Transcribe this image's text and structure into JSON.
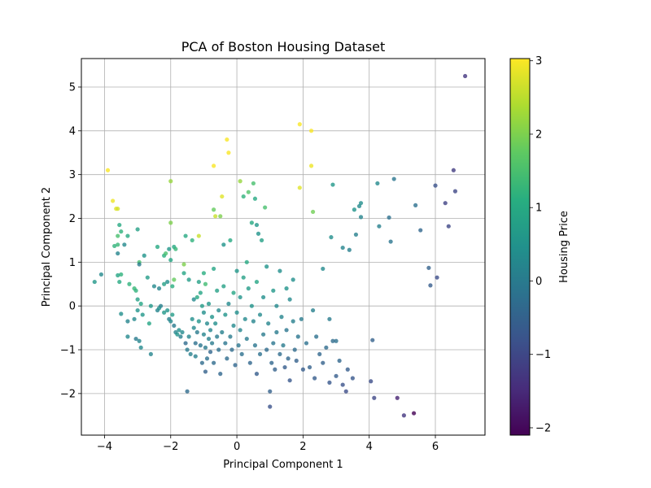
{
  "chart_data": {
    "type": "scatter",
    "title": "PCA of Boston Housing Dataset",
    "xlabel": "Principal Component 1",
    "ylabel": "Principal Component 2",
    "xlim": [
      -4.7,
      7.5
    ],
    "ylim": [
      -2.95,
      5.65
    ],
    "xticks": [
      -4,
      -2,
      0,
      2,
      4,
      6
    ],
    "yticks": [
      -2,
      -1,
      0,
      1,
      2,
      3,
      4,
      5
    ],
    "grid": true,
    "colorbar": {
      "label": "Housing Price",
      "colormap": "viridis",
      "range": [
        -2.1,
        3.03
      ],
      "ticks": [
        -2,
        -1,
        0,
        1,
        2,
        3
      ]
    },
    "points": [
      {
        "x": -4.3,
        "y": 0.55,
        "c": 0.6
      },
      {
        "x": -4.1,
        "y": 0.72,
        "c": 0.3
      },
      {
        "x": -3.9,
        "y": 3.1,
        "c": 3.0
      },
      {
        "x": -3.75,
        "y": 2.4,
        "c": 2.9
      },
      {
        "x": -3.65,
        "y": 2.22,
        "c": 2.8
      },
      {
        "x": -3.6,
        "y": 2.22,
        "c": 2.7
      },
      {
        "x": -3.7,
        "y": 1.37,
        "c": 1.2
      },
      {
        "x": -3.6,
        "y": 1.4,
        "c": 1.3
      },
      {
        "x": -3.55,
        "y": 1.85,
        "c": 1.0
      },
      {
        "x": -3.6,
        "y": 1.6,
        "c": 1.5
      },
      {
        "x": -3.6,
        "y": 1.2,
        "c": 0.2
      },
      {
        "x": -3.5,
        "y": 1.7,
        "c": 1.2
      },
      {
        "x": -3.4,
        "y": 1.4,
        "c": 0.3
      },
      {
        "x": -3.3,
        "y": 1.6,
        "c": 1.0
      },
      {
        "x": -3.5,
        "y": 0.72,
        "c": 1.2
      },
      {
        "x": -3.6,
        "y": 0.7,
        "c": 0.9
      },
      {
        "x": -3.55,
        "y": 0.55,
        "c": 1.0
      },
      {
        "x": -3.5,
        "y": -0.18,
        "c": 0.4
      },
      {
        "x": -3.3,
        "y": -0.35,
        "c": 0.2
      },
      {
        "x": -3.25,
        "y": 0.5,
        "c": 1.2
      },
      {
        "x": -3.3,
        "y": -0.7,
        "c": 0.3
      },
      {
        "x": -3.1,
        "y": 0.4,
        "c": 1.3
      },
      {
        "x": -3.05,
        "y": 0.35,
        "c": 1.2
      },
      {
        "x": -3.0,
        "y": 1.75,
        "c": 0.8
      },
      {
        "x": -2.95,
        "y": 1.0,
        "c": 1.5
      },
      {
        "x": -2.95,
        "y": 0.95,
        "c": 0.0
      },
      {
        "x": -3.0,
        "y": 0.15,
        "c": 0.8
      },
      {
        "x": -2.9,
        "y": 0.05,
        "c": 0.9
      },
      {
        "x": -3.0,
        "y": -0.1,
        "c": 0.5
      },
      {
        "x": -3.1,
        "y": -0.3,
        "c": 0.3
      },
      {
        "x": -3.05,
        "y": -0.75,
        "c": 0.0
      },
      {
        "x": -2.95,
        "y": -0.8,
        "c": 0.2
      },
      {
        "x": -2.9,
        "y": -0.95,
        "c": 0.3
      },
      {
        "x": -2.85,
        "y": -0.2,
        "c": 0.6
      },
      {
        "x": -2.8,
        "y": 1.15,
        "c": 0.5
      },
      {
        "x": -2.7,
        "y": 0.65,
        "c": 0.7
      },
      {
        "x": -2.65,
        "y": -0.4,
        "c": 0.9
      },
      {
        "x": -2.6,
        "y": -1.1,
        "c": 0.2
      },
      {
        "x": -2.6,
        "y": 0.0,
        "c": 0.6
      },
      {
        "x": -2.5,
        "y": 0.45,
        "c": 0.3
      },
      {
        "x": -2.4,
        "y": 1.35,
        "c": 1.0
      },
      {
        "x": -2.35,
        "y": 0.4,
        "c": 0.2
      },
      {
        "x": -2.3,
        "y": 0.0,
        "c": 0.1
      },
      {
        "x": -2.2,
        "y": 0.5,
        "c": 0.8
      },
      {
        "x": -2.2,
        "y": 1.15,
        "c": 1.1
      },
      {
        "x": -2.15,
        "y": 1.2,
        "c": 1.5
      },
      {
        "x": -2.1,
        "y": 0.55,
        "c": 0.4
      },
      {
        "x": -2.05,
        "y": 1.3,
        "c": 0.6
      },
      {
        "x": -2.0,
        "y": 1.9,
        "c": 2.0
      },
      {
        "x": -2.0,
        "y": 2.85,
        "c": 2.2
      },
      {
        "x": -2.0,
        "y": 1.05,
        "c": 0.9
      },
      {
        "x": -1.95,
        "y": 0.45,
        "c": 1.1
      },
      {
        "x": -1.9,
        "y": 0.6,
        "c": 1.8
      },
      {
        "x": -1.9,
        "y": 1.35,
        "c": 1.0
      },
      {
        "x": -1.85,
        "y": 1.3,
        "c": 1.3
      },
      {
        "x": -2.4,
        "y": -0.1,
        "c": 0.2
      },
      {
        "x": -2.35,
        "y": -0.05,
        "c": 0.4
      },
      {
        "x": -2.2,
        "y": -0.15,
        "c": 0.6
      },
      {
        "x": -2.1,
        "y": -0.1,
        "c": 0.5
      },
      {
        "x": -2.05,
        "y": -0.3,
        "c": 0.1
      },
      {
        "x": -2.0,
        "y": -0.35,
        "c": 0.3
      },
      {
        "x": -1.95,
        "y": -0.2,
        "c": 0.7
      },
      {
        "x": -1.9,
        "y": -0.45,
        "c": 0.0
      },
      {
        "x": -1.85,
        "y": -0.6,
        "c": 0.2
      },
      {
        "x": -1.8,
        "y": -0.65,
        "c": 0.5
      },
      {
        "x": -1.75,
        "y": -0.55,
        "c": 0.4
      },
      {
        "x": -1.7,
        "y": -0.7,
        "c": 0.1
      },
      {
        "x": -1.65,
        "y": -0.6,
        "c": 0.3
      },
      {
        "x": -1.6,
        "y": 0.95,
        "c": 2.0
      },
      {
        "x": -1.55,
        "y": 1.6,
        "c": 1.0
      },
      {
        "x": -1.6,
        "y": 0.75,
        "c": 0.9
      },
      {
        "x": -1.55,
        "y": -0.85,
        "c": -0.3
      },
      {
        "x": -1.5,
        "y": -1.0,
        "c": 0.0
      },
      {
        "x": -1.5,
        "y": -1.95,
        "c": -0.3
      },
      {
        "x": -1.45,
        "y": -0.7,
        "c": 0.2
      },
      {
        "x": -1.45,
        "y": 0.6,
        "c": 0.7
      },
      {
        "x": -1.4,
        "y": -1.1,
        "c": 0.1
      },
      {
        "x": -1.35,
        "y": 1.5,
        "c": 1.2
      },
      {
        "x": -1.35,
        "y": -0.3,
        "c": 0.4
      },
      {
        "x": -1.3,
        "y": -0.5,
        "c": 0.3
      },
      {
        "x": -1.3,
        "y": 0.15,
        "c": 0.3
      },
      {
        "x": -1.25,
        "y": -0.85,
        "c": -0.2
      },
      {
        "x": -1.25,
        "y": -1.15,
        "c": 0.1
      },
      {
        "x": -1.2,
        "y": 0.2,
        "c": 1.0
      },
      {
        "x": -1.2,
        "y": -0.6,
        "c": 0.0
      },
      {
        "x": -1.15,
        "y": -0.35,
        "c": 0.5
      },
      {
        "x": -1.15,
        "y": 0.55,
        "c": 0.8
      },
      {
        "x": -1.15,
        "y": 1.6,
        "c": 2.6
      },
      {
        "x": -1.1,
        "y": 0.3,
        "c": 0.9
      },
      {
        "x": -1.1,
        "y": -0.9,
        "c": -0.1
      },
      {
        "x": -1.05,
        "y": 0.0,
        "c": 0.7
      },
      {
        "x": -1.05,
        "y": -1.3,
        "c": -0.3
      },
      {
        "x": -1.0,
        "y": -0.15,
        "c": 0.4
      },
      {
        "x": -1.0,
        "y": -0.65,
        "c": 0.2
      },
      {
        "x": -1.0,
        "y": 0.75,
        "c": 1.1
      },
      {
        "x": -0.95,
        "y": -0.95,
        "c": 0.0
      },
      {
        "x": -0.95,
        "y": 0.5,
        "c": 1.4
      },
      {
        "x": -0.95,
        "y": -1.5,
        "c": -0.5
      },
      {
        "x": -0.9,
        "y": -0.4,
        "c": 0.3
      },
      {
        "x": -0.9,
        "y": -1.2,
        "c": -0.2
      },
      {
        "x": -0.85,
        "y": 0.05,
        "c": 0.6
      },
      {
        "x": -0.85,
        "y": -0.75,
        "c": 0.1
      },
      {
        "x": -0.8,
        "y": -1.05,
        "c": -0.4
      },
      {
        "x": -0.8,
        "y": -0.55,
        "c": 0.2
      },
      {
        "x": -0.75,
        "y": -0.25,
        "c": 0.5
      },
      {
        "x": -0.75,
        "y": -0.85,
        "c": 0.0
      },
      {
        "x": -0.7,
        "y": 0.85,
        "c": 0.9
      },
      {
        "x": -0.7,
        "y": -1.3,
        "c": -0.3
      },
      {
        "x": -0.7,
        "y": 3.2,
        "c": 3.0
      },
      {
        "x": -0.7,
        "y": 2.2,
        "c": 1.8
      },
      {
        "x": -0.65,
        "y": 2.05,
        "c": 2.6
      },
      {
        "x": -0.65,
        "y": -0.4,
        "c": 0.4
      },
      {
        "x": -0.6,
        "y": -0.7,
        "c": 0.0
      },
      {
        "x": -0.6,
        "y": 0.35,
        "c": 0.8
      },
      {
        "x": -0.55,
        "y": -1.0,
        "c": -0.2
      },
      {
        "x": -0.55,
        "y": -0.1,
        "c": 0.3
      },
      {
        "x": -0.5,
        "y": 2.05,
        "c": 2.0
      },
      {
        "x": -0.5,
        "y": -1.55,
        "c": -0.4
      },
      {
        "x": -0.45,
        "y": 2.5,
        "c": 2.8
      },
      {
        "x": -0.45,
        "y": -0.6,
        "c": 0.1
      },
      {
        "x": -0.4,
        "y": 1.4,
        "c": 0.5
      },
      {
        "x": -0.4,
        "y": 0.45,
        "c": 0.8
      },
      {
        "x": -0.35,
        "y": -0.2,
        "c": 0.5
      },
      {
        "x": -0.35,
        "y": -0.85,
        "c": -0.1
      },
      {
        "x": -0.3,
        "y": 3.8,
        "c": 3.0
      },
      {
        "x": -0.3,
        "y": -1.2,
        "c": -0.3
      },
      {
        "x": -0.25,
        "y": 3.5,
        "c": 3.0
      },
      {
        "x": -0.25,
        "y": 0.05,
        "c": 0.3
      },
      {
        "x": -0.2,
        "y": 1.5,
        "c": 1.0
      },
      {
        "x": -0.2,
        "y": -0.7,
        "c": 0.0
      },
      {
        "x": -0.15,
        "y": -1.0,
        "c": -0.3
      },
      {
        "x": -0.1,
        "y": 0.3,
        "c": 0.9
      },
      {
        "x": -0.1,
        "y": -0.45,
        "c": 0.3
      },
      {
        "x": -0.05,
        "y": -1.35,
        "c": -0.4
      },
      {
        "x": 0.0,
        "y": 0.8,
        "c": 0.6
      },
      {
        "x": 0.0,
        "y": -0.15,
        "c": 0.4
      },
      {
        "x": 0.05,
        "y": -0.9,
        "c": -0.1
      },
      {
        "x": 0.1,
        "y": 2.85,
        "c": 2.2
      },
      {
        "x": 0.1,
        "y": 0.2,
        "c": 0.5
      },
      {
        "x": 0.1,
        "y": -0.55,
        "c": 0.2
      },
      {
        "x": 0.15,
        "y": -1.1,
        "c": -0.2
      },
      {
        "x": 0.2,
        "y": 2.5,
        "c": 1.2
      },
      {
        "x": 0.2,
        "y": 0.65,
        "c": 0.8
      },
      {
        "x": 0.25,
        "y": -0.3,
        "c": 0.3
      },
      {
        "x": 0.3,
        "y": 1.0,
        "c": 1.0
      },
      {
        "x": 0.3,
        "y": -0.75,
        "c": 0.0
      },
      {
        "x": 0.35,
        "y": 2.6,
        "c": 1.6
      },
      {
        "x": 0.35,
        "y": 0.4,
        "c": 0.7
      },
      {
        "x": 0.4,
        "y": -1.3,
        "c": -0.4
      },
      {
        "x": 0.45,
        "y": 1.9,
        "c": 1.0
      },
      {
        "x": 0.45,
        "y": 0.0,
        "c": 0.5
      },
      {
        "x": 0.5,
        "y": 2.8,
        "c": 1.5
      },
      {
        "x": 0.5,
        "y": -0.35,
        "c": 0.2
      },
      {
        "x": 0.55,
        "y": 2.45,
        "c": 1.0
      },
      {
        "x": 0.55,
        "y": -0.9,
        "c": -0.1
      },
      {
        "x": 0.6,
        "y": 1.85,
        "c": 0.6
      },
      {
        "x": 0.6,
        "y": 0.55,
        "c": 0.9
      },
      {
        "x": 0.6,
        "y": -1.55,
        "c": -0.6
      },
      {
        "x": 0.65,
        "y": 1.65,
        "c": 0.5
      },
      {
        "x": 0.7,
        "y": -0.2,
        "c": 0.3
      },
      {
        "x": 0.7,
        "y": -1.1,
        "c": -0.2
      },
      {
        "x": 0.75,
        "y": 1.5,
        "c": 0.8
      },
      {
        "x": 0.8,
        "y": 0.2,
        "c": 0.4
      },
      {
        "x": 0.8,
        "y": -0.65,
        "c": 0.0
      },
      {
        "x": 0.85,
        "y": 2.25,
        "c": 1.5
      },
      {
        "x": 0.9,
        "y": -1.0,
        "c": -0.3
      },
      {
        "x": 0.9,
        "y": 0.9,
        "c": 0.5
      },
      {
        "x": 0.95,
        "y": -0.4,
        "c": 0.2
      },
      {
        "x": 1.0,
        "y": -1.95,
        "c": -0.5
      },
      {
        "x": 1.0,
        "y": -2.3,
        "c": -0.8
      },
      {
        "x": 1.05,
        "y": -1.3,
        "c": -0.4
      },
      {
        "x": 1.1,
        "y": 0.35,
        "c": 0.6
      },
      {
        "x": 1.1,
        "y": -0.85,
        "c": -0.1
      },
      {
        "x": 1.15,
        "y": -1.45,
        "c": -0.5
      },
      {
        "x": 1.2,
        "y": 0.0,
        "c": 0.3
      },
      {
        "x": 1.2,
        "y": -0.6,
        "c": 0.0
      },
      {
        "x": 1.3,
        "y": 0.8,
        "c": 0.4
      },
      {
        "x": 1.3,
        "y": -1.1,
        "c": -0.3
      },
      {
        "x": 1.35,
        "y": -0.25,
        "c": 0.2
      },
      {
        "x": 1.4,
        "y": -0.9,
        "c": 0.0
      },
      {
        "x": 1.45,
        "y": -1.4,
        "c": -0.6
      },
      {
        "x": 1.5,
        "y": 0.4,
        "c": 0.5
      },
      {
        "x": 1.5,
        "y": -0.55,
        "c": -0.1
      },
      {
        "x": 1.55,
        "y": -1.2,
        "c": -0.4
      },
      {
        "x": 1.6,
        "y": -1.7,
        "c": -0.7
      },
      {
        "x": 1.6,
        "y": 0.15,
        "c": 0.3
      },
      {
        "x": 1.7,
        "y": -0.35,
        "c": 0.1
      },
      {
        "x": 1.7,
        "y": 0.6,
        "c": 0.4
      },
      {
        "x": 1.75,
        "y": -1.0,
        "c": -0.3
      },
      {
        "x": 1.8,
        "y": -1.25,
        "c": -0.5
      },
      {
        "x": 1.85,
        "y": -0.7,
        "c": -0.1
      },
      {
        "x": 1.9,
        "y": 2.7,
        "c": 2.8
      },
      {
        "x": 1.9,
        "y": 4.15,
        "c": 3.0
      },
      {
        "x": 1.95,
        "y": -0.3,
        "c": 0.0
      },
      {
        "x": 2.0,
        "y": -1.45,
        "c": -0.6
      },
      {
        "x": 2.1,
        "y": -0.85,
        "c": -0.2
      },
      {
        "x": 2.2,
        "y": -1.4,
        "c": -0.5
      },
      {
        "x": 2.25,
        "y": 4.0,
        "c": 3.0
      },
      {
        "x": 2.25,
        "y": 3.2,
        "c": 2.9
      },
      {
        "x": 2.3,
        "y": 2.15,
        "c": 1.9
      },
      {
        "x": 2.3,
        "y": -0.1,
        "c": 0.1
      },
      {
        "x": 2.35,
        "y": -1.65,
        "c": -0.6
      },
      {
        "x": 2.4,
        "y": -0.7,
        "c": -0.2
      },
      {
        "x": 2.5,
        "y": -1.1,
        "c": -0.4
      },
      {
        "x": 2.6,
        "y": 0.85,
        "c": 0.3
      },
      {
        "x": 2.6,
        "y": -1.3,
        "c": -0.5
      },
      {
        "x": 2.7,
        "y": -0.95,
        "c": -0.3
      },
      {
        "x": 2.8,
        "y": -1.75,
        "c": -0.7
      },
      {
        "x": 2.8,
        "y": -0.3,
        "c": 0.0
      },
      {
        "x": 2.85,
        "y": 1.57,
        "c": 0.4
      },
      {
        "x": 2.9,
        "y": 2.77,
        "c": 0.6
      },
      {
        "x": 2.9,
        "y": -0.8,
        "c": -0.3
      },
      {
        "x": 3.0,
        "y": -1.6,
        "c": -0.6
      },
      {
        "x": 3.0,
        "y": -0.8,
        "c": -0.2
      },
      {
        "x": 3.1,
        "y": -1.25,
        "c": -0.4
      },
      {
        "x": 3.2,
        "y": -1.8,
        "c": -0.8
      },
      {
        "x": 3.2,
        "y": 1.33,
        "c": 0.2
      },
      {
        "x": 3.3,
        "y": -1.95,
        "c": -0.9
      },
      {
        "x": 3.35,
        "y": -1.45,
        "c": -0.6
      },
      {
        "x": 3.4,
        "y": 1.28,
        "c": 0.1
      },
      {
        "x": 3.5,
        "y": -1.65,
        "c": -0.7
      },
      {
        "x": 3.55,
        "y": 2.2,
        "c": 0.5
      },
      {
        "x": 3.6,
        "y": 1.63,
        "c": 0.1
      },
      {
        "x": 3.7,
        "y": 2.28,
        "c": 0.3
      },
      {
        "x": 3.75,
        "y": 2.35,
        "c": 0.4
      },
      {
        "x": 3.75,
        "y": 2.03,
        "c": 0.2
      },
      {
        "x": 4.05,
        "y": -1.72,
        "c": -0.9
      },
      {
        "x": 4.1,
        "y": -0.78,
        "c": -0.5
      },
      {
        "x": 4.15,
        "y": -2.1,
        "c": -1.0
      },
      {
        "x": 4.25,
        "y": 2.8,
        "c": 0.3
      },
      {
        "x": 4.3,
        "y": 1.82,
        "c": 0.1
      },
      {
        "x": 4.6,
        "y": 2.02,
        "c": -0.2
      },
      {
        "x": 4.65,
        "y": 1.47,
        "c": -0.1
      },
      {
        "x": 4.75,
        "y": 2.9,
        "c": -0.1
      },
      {
        "x": 4.85,
        "y": -2.1,
        "c": -1.6
      },
      {
        "x": 5.05,
        "y": -2.5,
        "c": -1.3
      },
      {
        "x": 5.35,
        "y": -2.45,
        "c": -2.1
      },
      {
        "x": 5.4,
        "y": 2.3,
        "c": -0.2
      },
      {
        "x": 5.55,
        "y": 1.73,
        "c": -0.4
      },
      {
        "x": 5.8,
        "y": 0.87,
        "c": -0.5
      },
      {
        "x": 5.85,
        "y": 0.47,
        "c": -0.6
      },
      {
        "x": 6.0,
        "y": 2.75,
        "c": -0.8
      },
      {
        "x": 6.05,
        "y": 0.65,
        "c": -0.9
      },
      {
        "x": 6.3,
        "y": 2.35,
        "c": -1.1
      },
      {
        "x": 6.4,
        "y": 1.82,
        "c": -1.0
      },
      {
        "x": 6.55,
        "y": 3.1,
        "c": -1.2
      },
      {
        "x": 6.6,
        "y": 2.62,
        "c": -1.0
      },
      {
        "x": 6.9,
        "y": 5.25,
        "c": -1.3
      }
    ]
  }
}
